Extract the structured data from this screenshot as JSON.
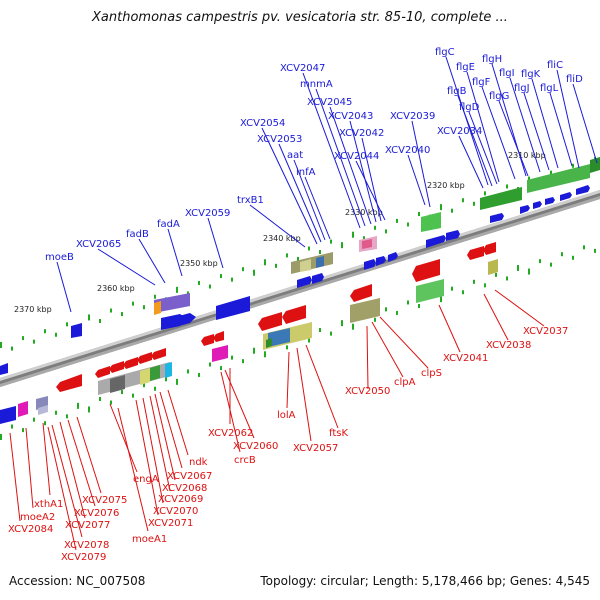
{
  "title": "Xanthomonas campestris pv. vesicatoria str. 85-10, complete ...",
  "accession_label": "Accession: NC_007508",
  "summary_label": "Topology: circular; Length: 5,178,466 bp; Genes: 4,545",
  "colors": {
    "plus_strand": "#1a1ad8",
    "minus_strand": "#dd1111",
    "tick": "#22aa22",
    "backbone": "#888888"
  },
  "scale_ticks": [
    "2310 kbp",
    "2320 kbp",
    "2330 kbp",
    "2340 kbp",
    "2350 kbp",
    "2360 kbp",
    "2370 kbp"
  ],
  "genes_top": [
    "flgC",
    "flgE",
    "flgH",
    "fliC",
    "flgB",
    "flgF",
    "flgI",
    "flgK",
    "fliD",
    "flgD",
    "flgG",
    "flgJ",
    "flgL",
    "XCV2047",
    "mnmA",
    "XCV2045",
    "XCV2043",
    "XCV2042",
    "XCV2039",
    "XCV2034",
    "XCV2054",
    "XCV2053",
    "aat",
    "infA",
    "XCV2044",
    "XCV2040",
    "trxB1",
    "XCV2059",
    "fadA",
    "fadB",
    "XCV2065",
    "moeB"
  ],
  "genes_bottom": [
    "XCV2037",
    "XCV2038",
    "XCV2041",
    "clpS",
    "clpA",
    "XCV2050",
    "ftsK",
    "XCV2057",
    "lolA",
    "XCV2062",
    "XCV2060",
    "crcB",
    "ndk",
    "XCV2067",
    "engA",
    "XCV2068",
    "XCV2069",
    "XCV2070",
    "XCV2071",
    "moeA1",
    "xthA1",
    "moeA2",
    "XCV2084",
    "XCV2075",
    "XCV2076",
    "XCV2077",
    "XCV2078",
    "XCV2079"
  ]
}
